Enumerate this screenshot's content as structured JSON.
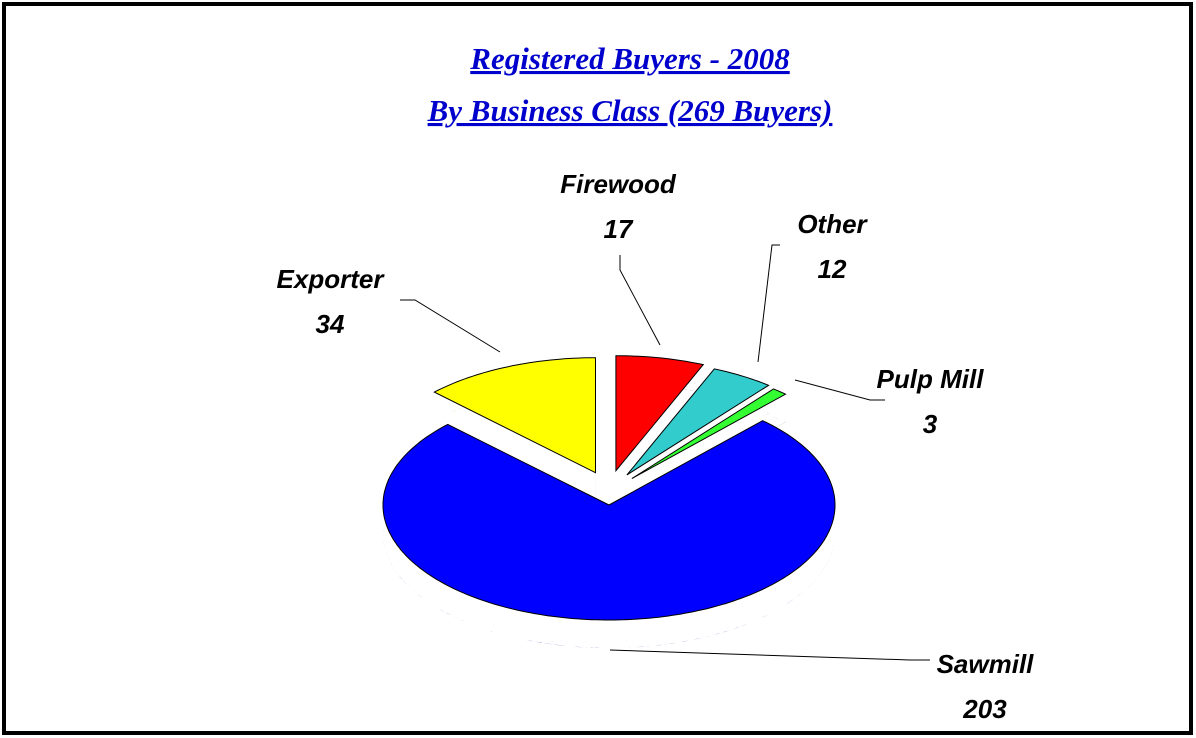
{
  "chart_data": {
    "type": "pie3d",
    "title": "Registered Buyers - 2008",
    "subtitle": "By Business Class (269 Buyers)",
    "categories": [
      "Firewood",
      "Other",
      "Pulp Mill",
      "Sawmill",
      "Exporter"
    ],
    "values": [
      17,
      12,
      3,
      203,
      34
    ],
    "colors": [
      "#ff0000",
      "#33cccc",
      "#33ff33",
      "#0000ff",
      "#ffff00"
    ]
  }
}
